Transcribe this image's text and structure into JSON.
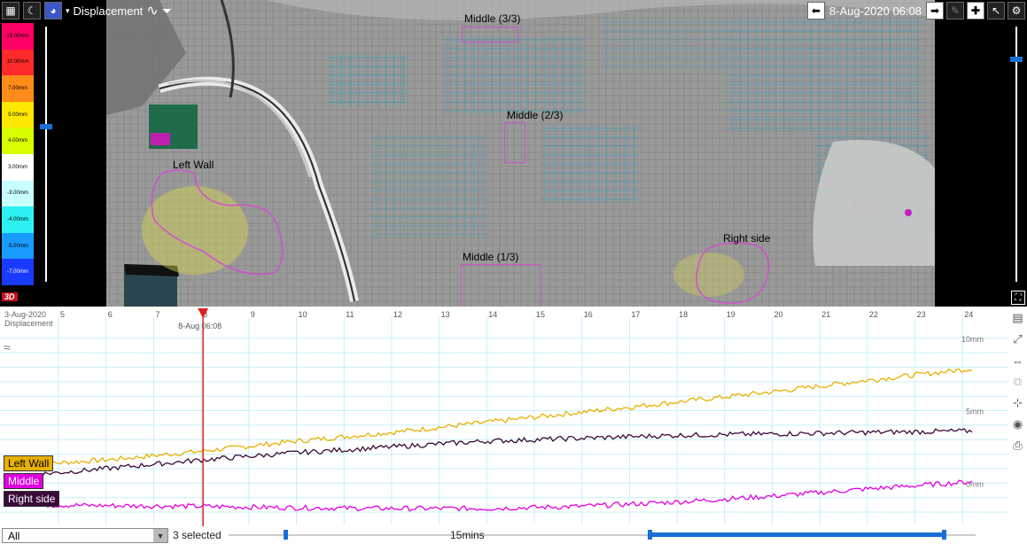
{
  "toolbar": {
    "mode_label": "Displacement",
    "date_label": "8-Aug-2020 06:08"
  },
  "legend": {
    "ticks": [
      "15.00mm",
      "10.00mm",
      "7.00mm",
      "5.00mm",
      "4.00mm",
      "3.00mm",
      "-3.00mm",
      "-4.00mm",
      "-5.00mm",
      "-7.00mm"
    ],
    "colors": [
      "#ff0066",
      "#ff2a2a",
      "#ff8c1a",
      "#ffe800",
      "#d9ff00",
      "#ffffff",
      "#c8ffff",
      "#2ef0f0",
      "#1a9bff",
      "#1a3aff"
    ]
  },
  "regions": {
    "middle_3": "Middle (3/3)",
    "middle_2": "Middle (2/3)",
    "left_wall": "Left Wall",
    "middle_1": "Middle (1/3)",
    "right_side": "Right side"
  },
  "badge_3d": "3D",
  "chart": {
    "date_line1": "3-Aug-2020",
    "date_line2": "Displacement",
    "cursor_label": "8-Aug 06:08",
    "day_ticks": [
      "5",
      "6",
      "7",
      "8",
      "9",
      "10",
      "11",
      "12",
      "13",
      "14",
      "15",
      "16",
      "17",
      "18",
      "19",
      "20",
      "21",
      "22",
      "23",
      "24"
    ],
    "y_labels": [
      "10mm",
      "5mm",
      "0mm"
    ],
    "series_labels": [
      "Left Wall",
      "Middle",
      "Right side"
    ]
  },
  "chart_data": {
    "type": "line",
    "x_label": "",
    "y_label": "",
    "x": [
      4.5,
      6,
      8,
      10,
      12,
      14,
      16,
      18,
      20,
      22,
      24.2
    ],
    "series": [
      {
        "name": "Left Wall",
        "color": "#e8b000",
        "values": [
          1.3,
          1.6,
          2.2,
          2.9,
          3.5,
          4.2,
          4.9,
          5.6,
          6.3,
          7.1,
          7.9
        ]
      },
      {
        "name": "Middle",
        "color": "#e000e0",
        "values": [
          -1.5,
          -1.55,
          -1.6,
          -1.7,
          -1.75,
          -1.75,
          -1.6,
          -1.3,
          -0.9,
          -0.4,
          0.1
        ]
      },
      {
        "name": "Right side",
        "color": "#3a0a3a",
        "values": [
          0.6,
          1.0,
          1.6,
          2.1,
          2.5,
          2.9,
          3.1,
          3.3,
          3.4,
          3.5,
          3.6
        ]
      }
    ],
    "ylim": [
      -2,
      10
    ],
    "grid": true
  },
  "bottom": {
    "filter_value": "All",
    "selected_text": "3 selected",
    "interval_label": "15mins"
  }
}
